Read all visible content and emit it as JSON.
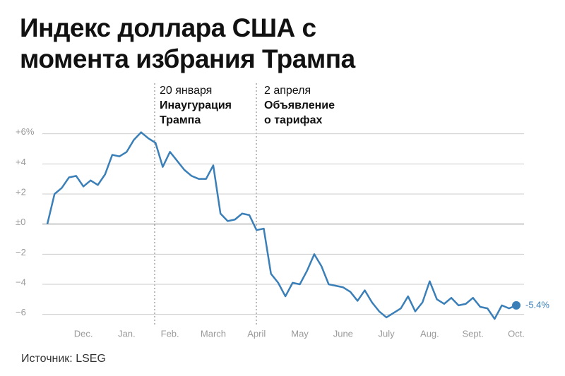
{
  "chart_data": {
    "type": "line",
    "title": "Индекс доллара США с момента избрания Трампа",
    "source": "Источник: LSEG",
    "annotations": [
      {
        "date": "20 января",
        "lines": [
          "Инаугурация",
          "Трампа"
        ]
      },
      {
        "date": "2 апреля",
        "lines": [
          "Объявление",
          "о тарифах"
        ]
      }
    ],
    "categories": [
      null,
      null,
      null,
      null,
      null,
      "Dec.",
      null,
      null,
      null,
      null,
      null,
      "Jan.",
      null,
      null,
      null,
      null,
      null,
      "Feb.",
      null,
      null,
      null,
      null,
      null,
      "March",
      null,
      null,
      null,
      null,
      null,
      "April",
      null,
      null,
      null,
      null,
      null,
      "May",
      null,
      null,
      null,
      null,
      null,
      "June",
      null,
      null,
      null,
      null,
      null,
      "July",
      null,
      null,
      null,
      null,
      null,
      "Aug.",
      null,
      null,
      null,
      null,
      null,
      "Sept.",
      null,
      null,
      null,
      null,
      null,
      "Oct."
    ],
    "series": [
      {
        "color": "#3a7fb8",
        "values": [
          0.0,
          2.0,
          2.4,
          3.1,
          3.2,
          2.5,
          2.9,
          2.6,
          3.3,
          4.6,
          4.5,
          4.8,
          5.6,
          6.1,
          5.7,
          5.4,
          3.8,
          4.8,
          4.2,
          3.6,
          3.2,
          3.0,
          3.0,
          3.9,
          0.7,
          0.2,
          0.3,
          0.7,
          0.6,
          -0.4,
          -0.3,
          -3.3,
          -3.9,
          -4.8,
          -3.9,
          -4.0,
          -3.1,
          -2.0,
          -2.8,
          -4.0,
          -4.1,
          -4.2,
          -4.5,
          -5.1,
          -4.4,
          -5.2,
          -5.8,
          -6.2,
          -5.9,
          -5.6,
          -4.8,
          -5.8,
          -5.2,
          -3.8,
          -5.0,
          -5.3,
          -4.9,
          -5.4,
          -5.3,
          -4.9,
          -5.5,
          -5.6,
          -6.3,
          -5.4,
          -5.6,
          -5.4
        ],
        "value_labels": [
          null,
          null,
          null,
          null,
          null,
          null,
          null,
          null,
          null,
          null,
          null,
          null,
          null,
          null,
          null,
          null,
          null,
          null,
          null,
          null,
          null,
          null,
          null,
          null,
          null,
          null,
          null,
          null,
          null,
          null,
          null,
          null,
          null,
          null,
          null,
          null,
          null,
          null,
          null,
          null,
          null,
          null,
          null,
          null,
          null,
          null,
          null,
          null,
          null,
          null,
          null,
          null,
          null,
          null,
          null,
          null,
          null,
          null,
          null,
          null,
          null,
          null,
          null,
          null,
          null,
          "-5.4%"
        ]
      }
    ],
    "ylim": [
      -7,
      6.5
    ],
    "yticks": [
      {
        "value": 6,
        "label": "+6%"
      },
      {
        "value": 4,
        "label": "+4"
      },
      {
        "value": 2,
        "label": "+2"
      },
      {
        "value": 0,
        "label": "±0"
      },
      {
        "value": -2,
        "label": "−2"
      },
      {
        "value": -4,
        "label": "−4"
      },
      {
        "value": -6,
        "label": "−6"
      }
    ],
    "grid": true
  }
}
